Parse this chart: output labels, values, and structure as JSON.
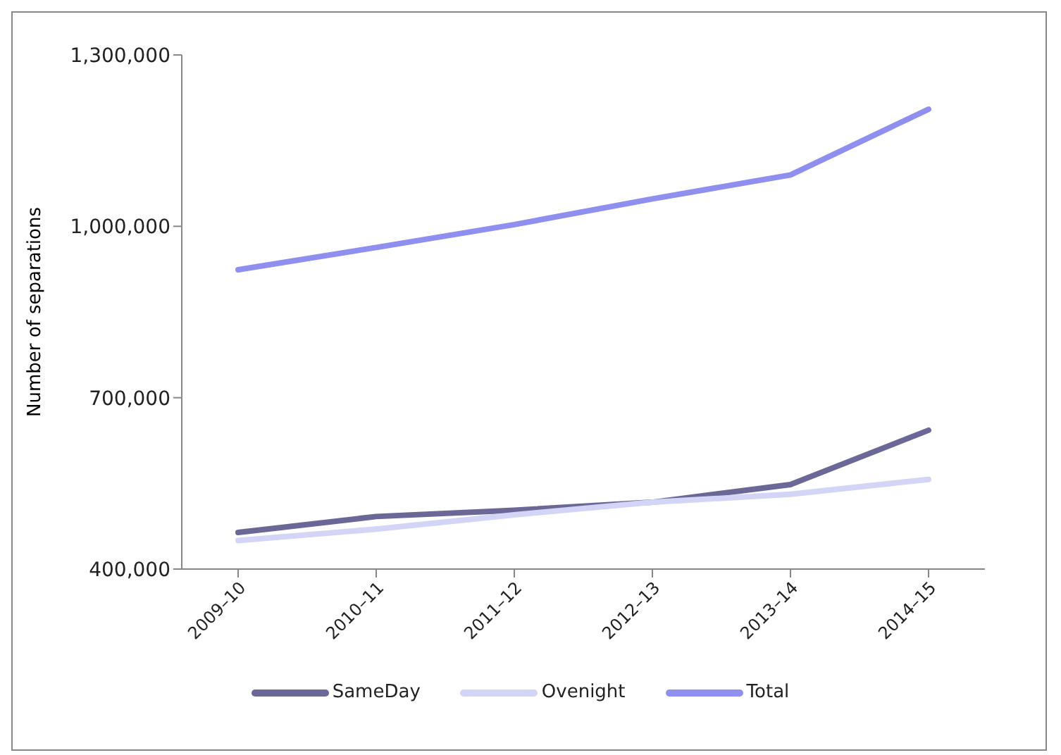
{
  "chart_data": {
    "type": "line",
    "ylabel": "Number of separations",
    "categories": [
      "2009–10",
      "2010–11",
      "2011–12",
      "2012–13",
      "2013–14",
      "2014–15"
    ],
    "series": [
      {
        "name": "SameDay",
        "color": "#6b6897",
        "values": [
          464000,
          492000,
          503000,
          517000,
          548000,
          643000
        ]
      },
      {
        "name": "Ovenight",
        "color": "#d4d4f7",
        "values": [
          450000,
          470000,
          495000,
          517000,
          531000,
          557000
        ]
      },
      {
        "name": "Total",
        "color": "#8f8ff0",
        "values": [
          924000,
          963000,
          1003000,
          1048000,
          1090000,
          1205000
        ]
      }
    ],
    "ylim": [
      400000,
      1300000
    ],
    "yticks": [
      {
        "value": 400000,
        "label": "400,000"
      },
      {
        "value": 700000,
        "label": "700,000"
      },
      {
        "value": 1000000,
        "label": "1,000,000"
      },
      {
        "value": 1300000,
        "label": "1,300,000"
      }
    ],
    "grid": false,
    "legend": "bottom",
    "marker": "none",
    "line_style": "solid"
  }
}
